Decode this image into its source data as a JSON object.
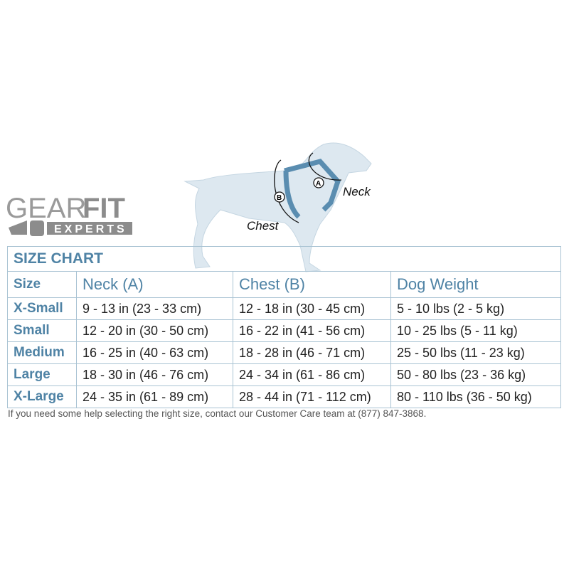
{
  "logo": {
    "word1": "GEAR",
    "word2": "FIT",
    "word3": "EXPERTS"
  },
  "diagram": {
    "neck_label": "Neck",
    "chest_label": "Chest",
    "marker_a": "A",
    "marker_b": "B",
    "colors": {
      "dog": "#dde8f0",
      "harness": "#5a8db0"
    }
  },
  "table": {
    "title": "SIZE CHART",
    "headers": [
      "Size",
      "Neck (A)",
      "Chest (B)",
      "Dog Weight"
    ],
    "rows": [
      [
        "X-Small",
        "9 - 13 in  (23 - 33 cm)",
        "12 - 18 in  (30 - 45 cm)",
        "5 - 10 lbs  (2 - 5 kg)"
      ],
      [
        "Small",
        "12 - 20 in  (30 - 50 cm)",
        "16 - 22 in  (41 - 56 cm)",
        "10 - 25 lbs  (5 - 11 kg)"
      ],
      [
        "Medium",
        "16 - 25 in  (40 - 63 cm)",
        "18 - 28 in  (46 - 71 cm)",
        "25 - 50 lbs  (11 - 23 kg)"
      ],
      [
        "Large",
        "18 - 30 in  (46 - 76 cm)",
        "24 - 34 in  (61 - 86 cm)",
        "50 - 80 lbs  (23 - 36 kg)"
      ],
      [
        "X-Large",
        "24 - 35 in  (61 - 89 cm)",
        "28 - 44 in  (71 - 112 cm)",
        "80 - 110 lbs  (36 - 50 kg)"
      ]
    ]
  },
  "footer": "If you need some help selecting the right size, contact our Customer Care team at (877) 847-3868.",
  "colors": {
    "accent": "#4f83a5",
    "border": "#a9c3d3"
  }
}
